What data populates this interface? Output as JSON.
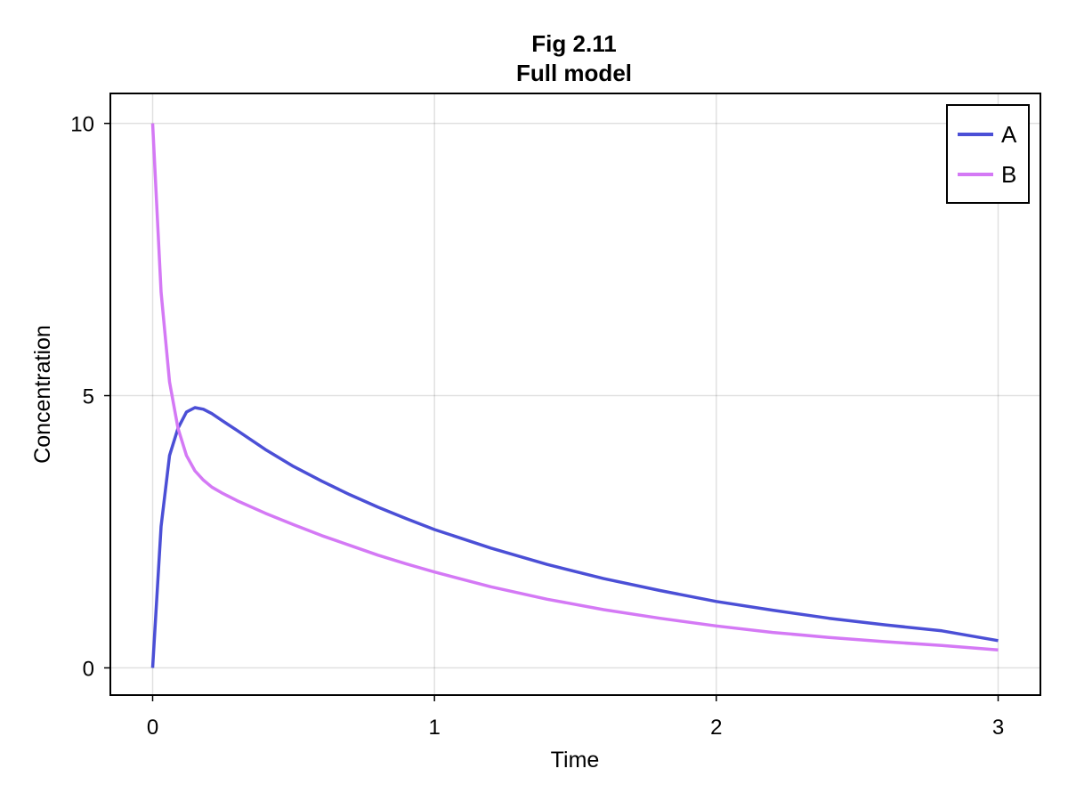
{
  "chart_data": {
    "type": "line",
    "title": "Fig 2.11",
    "subtitle": "Full model",
    "xlabel": "Time",
    "ylabel": "Concentration",
    "xlim": [
      -0.15,
      3.15
    ],
    "ylim": [
      -0.5,
      10.55
    ],
    "xticks": [
      0,
      1,
      2,
      3
    ],
    "xtick_labels": [
      "0",
      "1",
      "2",
      "3"
    ],
    "yticks": [
      0,
      5,
      10
    ],
    "ytick_labels": [
      "0",
      "5",
      "10"
    ],
    "grid": true,
    "legend_position": "top-right",
    "series": [
      {
        "name": "A",
        "color": "#4b4fd6",
        "x": [
          0,
          0.03,
          0.06,
          0.09,
          0.12,
          0.15,
          0.18,
          0.21,
          0.25,
          0.3,
          0.4,
          0.5,
          0.6,
          0.7,
          0.8,
          0.9,
          1.0,
          1.2,
          1.4,
          1.6,
          1.8,
          2.0,
          2.2,
          2.4,
          2.6,
          2.8,
          3.0
        ],
        "y": [
          0,
          2.6,
          3.9,
          4.4,
          4.7,
          4.78,
          4.75,
          4.67,
          4.53,
          4.36,
          4.01,
          3.7,
          3.43,
          3.18,
          2.95,
          2.74,
          2.54,
          2.2,
          1.9,
          1.64,
          1.42,
          1.22,
          1.06,
          0.91,
          0.79,
          0.68,
          0.5
        ]
      },
      {
        "name": "B",
        "color": "#d479f5",
        "x": [
          0,
          0.03,
          0.06,
          0.09,
          0.12,
          0.15,
          0.18,
          0.21,
          0.25,
          0.3,
          0.4,
          0.5,
          0.6,
          0.7,
          0.8,
          0.9,
          1.0,
          1.2,
          1.4,
          1.6,
          1.8,
          2.0,
          2.2,
          2.4,
          2.6,
          2.8,
          3.0
        ],
        "y": [
          10,
          6.9,
          5.25,
          4.4,
          3.9,
          3.62,
          3.45,
          3.32,
          3.2,
          3.07,
          2.84,
          2.63,
          2.43,
          2.25,
          2.07,
          1.91,
          1.76,
          1.49,
          1.26,
          1.07,
          0.91,
          0.77,
          0.65,
          0.56,
          0.48,
          0.41,
          0.33
        ]
      }
    ]
  }
}
